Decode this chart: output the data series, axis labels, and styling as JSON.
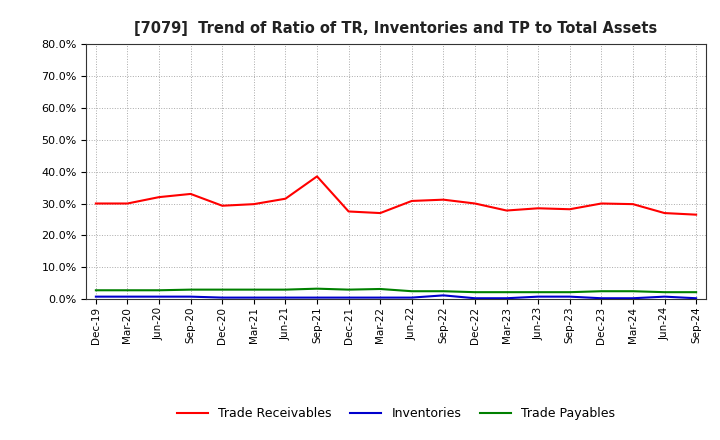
{
  "title": "[7079]  Trend of Ratio of TR, Inventories and TP to Total Assets",
  "labels": [
    "Dec-19",
    "Mar-20",
    "Jun-20",
    "Sep-20",
    "Dec-20",
    "Mar-21",
    "Jun-21",
    "Sep-21",
    "Dec-21",
    "Mar-22",
    "Jun-22",
    "Sep-22",
    "Dec-22",
    "Mar-23",
    "Jun-23",
    "Sep-23",
    "Dec-23",
    "Mar-24",
    "Jun-24",
    "Sep-24"
  ],
  "trade_receivables": [
    0.3,
    0.3,
    0.32,
    0.33,
    0.293,
    0.298,
    0.315,
    0.385,
    0.275,
    0.27,
    0.308,
    0.312,
    0.3,
    0.278,
    0.285,
    0.282,
    0.3,
    0.298,
    0.27,
    0.265
  ],
  "inventories": [
    0.008,
    0.008,
    0.008,
    0.008,
    0.005,
    0.005,
    0.005,
    0.005,
    0.005,
    0.005,
    0.005,
    0.012,
    0.003,
    0.003,
    0.008,
    0.008,
    0.003,
    0.003,
    0.008,
    0.003
  ],
  "trade_payables": [
    0.028,
    0.028,
    0.028,
    0.03,
    0.03,
    0.03,
    0.03,
    0.033,
    0.03,
    0.032,
    0.025,
    0.025,
    0.022,
    0.022,
    0.022,
    0.022,
    0.025,
    0.025,
    0.022,
    0.022
  ],
  "tr_color": "#ff0000",
  "inv_color": "#0000cd",
  "tp_color": "#008000",
  "ylim": [
    0.0,
    0.8
  ],
  "yticks": [
    0.0,
    0.1,
    0.2,
    0.3,
    0.4,
    0.5,
    0.6,
    0.7,
    0.8
  ],
  "legend_labels": [
    "Trade Receivables",
    "Inventories",
    "Trade Payables"
  ],
  "bg_color": "#ffffff",
  "grid_color": "#aaaaaa"
}
